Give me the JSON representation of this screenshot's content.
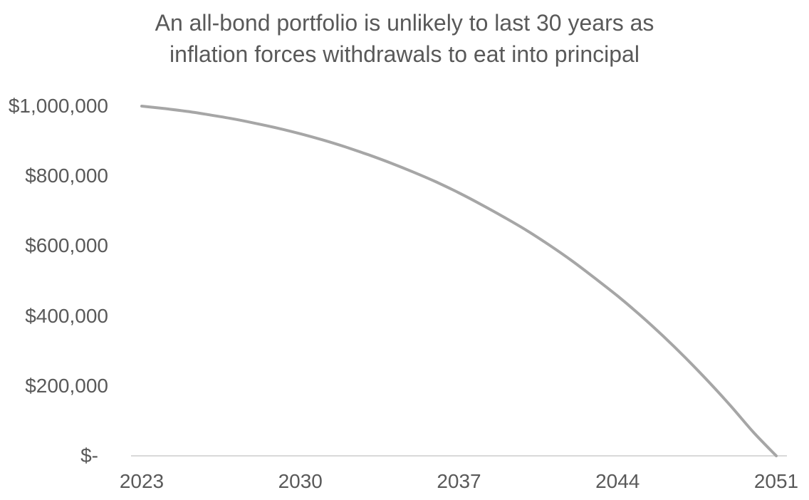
{
  "chart_data": {
    "type": "line",
    "title": "An all-bond portfolio is unlikely to last 30 years as inflation forces withdrawals to eat into principal",
    "title_lines": [
      "An all-bond portfolio is unlikely to last 30 years as",
      "inflation forces withdrawals to eat into principal"
    ],
    "x": [
      2023,
      2024,
      2025,
      2026,
      2027,
      2028,
      2029,
      2030,
      2031,
      2032,
      2033,
      2034,
      2035,
      2036,
      2037,
      2038,
      2039,
      2040,
      2041,
      2042,
      2043,
      2044,
      2045,
      2046,
      2047,
      2048,
      2049,
      2050,
      2051
    ],
    "values": [
      1000000,
      993000,
      985000,
      975000,
      964000,
      951000,
      937000,
      921000,
      903000,
      883000,
      861000,
      837000,
      811000,
      783000,
      752000,
      718000,
      682000,
      644000,
      602000,
      557000,
      508000,
      457000,
      402000,
      343000,
      280000,
      213000,
      142000,
      67000,
      0
    ],
    "x_ticks": [
      {
        "label": "2023",
        "value": 2023
      },
      {
        "label": "2030",
        "value": 2030
      },
      {
        "label": "2037",
        "value": 2037
      },
      {
        "label": "2044",
        "value": 2044
      },
      {
        "label": "2051",
        "value": 2051
      }
    ],
    "y_ticks": [
      {
        "label": "$-",
        "value": 0
      },
      {
        "label": "$200,000",
        "value": 200000
      },
      {
        "label": "$400,000",
        "value": 400000
      },
      {
        "label": "$600,000",
        "value": 600000
      },
      {
        "label": "$800,000",
        "value": 800000
      },
      {
        "label": "$1,000,000",
        "value": 1000000
      }
    ],
    "xlim": [
      2023,
      2051
    ],
    "ylim": [
      0,
      1000000
    ],
    "xlabel": "",
    "ylabel": "",
    "grid": false,
    "legend": "none",
    "smooth": true,
    "colors": {
      "line": "#A6A6A6",
      "axis": "#D9D9D9",
      "text": "#595959",
      "background": "#FFFFFF"
    }
  }
}
